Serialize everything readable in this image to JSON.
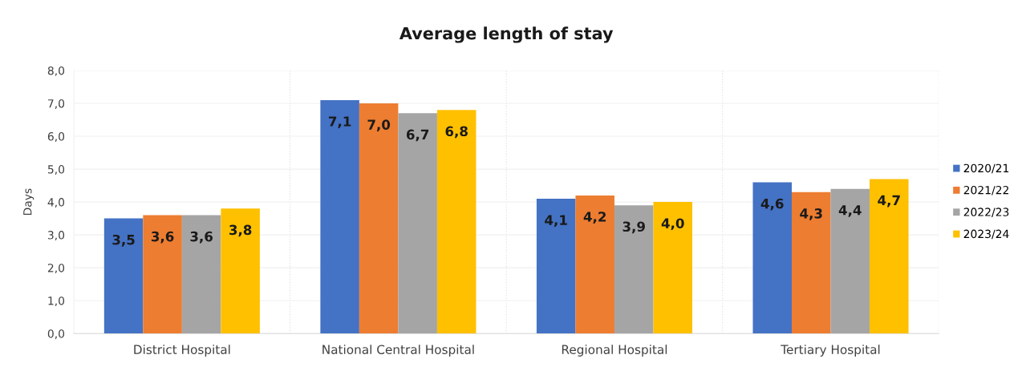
{
  "chart_data": {
    "type": "bar",
    "title": "Average length of stay",
    "ylabel": "Days",
    "categories": [
      "District Hospital",
      "National Central Hospital",
      "Regional Hospital",
      "Tertiary Hospital"
    ],
    "series": [
      {
        "name": "2020/21",
        "color": "#4472c4",
        "values": [
          3.5,
          7.1,
          4.1,
          4.6
        ],
        "value_labels": [
          "3,5",
          "7,1",
          "4,1",
          "4,6"
        ]
      },
      {
        "name": "2021/22",
        "color": "#ed7d31",
        "values": [
          3.6,
          7.0,
          4.2,
          4.3
        ],
        "value_labels": [
          "3,6",
          "7,0",
          "4,2",
          "4,3"
        ]
      },
      {
        "name": "2022/23",
        "color": "#a5a5a5",
        "values": [
          3.6,
          6.7,
          3.9,
          4.4
        ],
        "value_labels": [
          "3,6",
          "6,7",
          "3,9",
          "4,4"
        ]
      },
      {
        "name": "2023/24",
        "color": "#ffc000",
        "values": [
          3.8,
          6.8,
          4.0,
          4.7
        ],
        "value_labels": [
          "3,8",
          "6,8",
          "4,0",
          "4,7"
        ]
      }
    ],
    "ylim": [
      0,
      8
    ],
    "yticks": [
      {
        "value": 0,
        "label": "0,0"
      },
      {
        "value": 1,
        "label": "1,0"
      },
      {
        "value": 2,
        "label": "2,0"
      },
      {
        "value": 3,
        "label": "3,0"
      },
      {
        "value": 4,
        "label": "4,0"
      },
      {
        "value": 5,
        "label": "5,0"
      },
      {
        "value": 6,
        "label": "6,0"
      },
      {
        "value": 7,
        "label": "7,0"
      },
      {
        "value": 8,
        "label": "8,0"
      }
    ],
    "grid": true,
    "legend": "right"
  }
}
